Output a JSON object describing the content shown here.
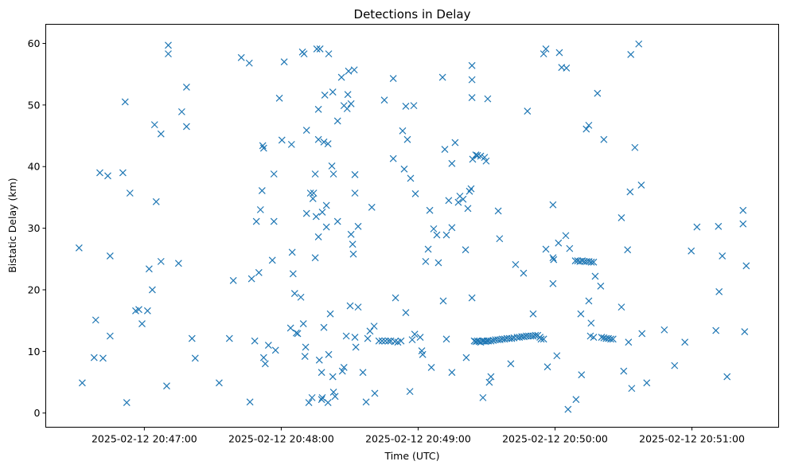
{
  "chart_data": {
    "type": "scatter",
    "title": "Detections in Delay",
    "xlabel": "Time (UTC)",
    "ylabel": "Bistatic Delay (km)",
    "x_units": "seconds relative to 2025-02-12 20:47:00 UTC",
    "xlim": [
      -43.2,
      278
    ],
    "ylim": [
      -2.3,
      63.1
    ],
    "grid": false,
    "marker": "x",
    "color": "#1f77b4",
    "xticks": [
      {
        "value": 0,
        "label": "2025-02-12 20:47:00"
      },
      {
        "value": 60,
        "label": "2025-02-12 20:48:00"
      },
      {
        "value": 120,
        "label": "2025-02-12 20:49:00"
      },
      {
        "value": 180,
        "label": "2025-02-12 20:50:00"
      },
      {
        "value": 240,
        "label": "2025-02-12 20:51:00"
      }
    ],
    "yticks": [
      {
        "value": 0,
        "label": "0"
      },
      {
        "value": 10,
        "label": "10"
      },
      {
        "value": 20,
        "label": "20"
      },
      {
        "value": 30,
        "label": "30"
      },
      {
        "value": 40,
        "label": "40"
      },
      {
        "value": 50,
        "label": "50"
      },
      {
        "value": 60,
        "label": "60"
      }
    ],
    "points": [
      [
        -28.6,
        26.8
      ],
      [
        -27.2,
        4.9
      ],
      [
        -21.3,
        15.1
      ],
      [
        -22.0,
        9.0
      ],
      [
        -19.5,
        39.0
      ],
      [
        -18.1,
        8.9
      ],
      [
        -16.0,
        38.5
      ],
      [
        -15.0,
        25.5
      ],
      [
        -15.0,
        12.5
      ],
      [
        -9.4,
        39.0
      ],
      [
        -8.4,
        50.5
      ],
      [
        -7.7,
        1.7
      ],
      [
        -6.3,
        35.7
      ],
      [
        -3.8,
        16.6
      ],
      [
        -2.4,
        16.8
      ],
      [
        -1.0,
        14.5
      ],
      [
        1.4,
        16.6
      ],
      [
        2.1,
        23.4
      ],
      [
        3.5,
        20.0
      ],
      [
        4.5,
        46.8
      ],
      [
        5.2,
        34.3
      ],
      [
        7.3,
        45.3
      ],
      [
        7.3,
        24.6
      ],
      [
        9.8,
        4.4
      ],
      [
        10.5,
        59.7
      ],
      [
        10.5,
        58.3
      ],
      [
        15.0,
        24.3
      ],
      [
        16.4,
        48.9
      ],
      [
        18.5,
        52.9
      ],
      [
        18.5,
        46.5
      ],
      [
        20.9,
        12.1
      ],
      [
        22.3,
        8.9
      ],
      [
        32.8,
        4.9
      ],
      [
        37.3,
        12.1
      ],
      [
        39.0,
        21.5
      ],
      [
        42.5,
        57.7
      ],
      [
        46.0,
        56.8
      ],
      [
        46.3,
        1.8
      ],
      [
        47.0,
        21.8
      ],
      [
        48.4,
        11.7
      ],
      [
        49.1,
        31.1
      ],
      [
        50.2,
        22.8
      ],
      [
        50.9,
        33.0
      ],
      [
        51.6,
        36.1
      ],
      [
        51.9,
        43.4
      ],
      [
        52.3,
        43.0
      ],
      [
        52.3,
        9.0
      ],
      [
        53.0,
        8.0
      ],
      [
        54.4,
        11.0
      ],
      [
        56.1,
        24.8
      ],
      [
        56.8,
        38.8
      ],
      [
        56.8,
        31.1
      ],
      [
        57.5,
        10.2
      ],
      [
        59.2,
        51.1
      ],
      [
        60.3,
        44.3
      ],
      [
        61.3,
        57.0
      ],
      [
        64.1,
        13.8
      ],
      [
        64.5,
        43.6
      ],
      [
        64.8,
        26.1
      ],
      [
        65.2,
        22.6
      ],
      [
        65.9,
        19.4
      ],
      [
        66.6,
        13.0
      ],
      [
        67.2,
        12.9
      ],
      [
        68.6,
        18.8
      ],
      [
        69.3,
        58.6
      ],
      [
        70.0,
        58.3
      ],
      [
        69.7,
        14.5
      ],
      [
        70.4,
        9.2
      ],
      [
        70.7,
        10.7
      ],
      [
        71.1,
        45.9
      ],
      [
        71.1,
        32.4
      ],
      [
        72.1,
        1.7
      ],
      [
        72.8,
        35.7
      ],
      [
        73.5,
        2.5
      ],
      [
        73.9,
        34.8
      ],
      [
        74.2,
        35.7
      ],
      [
        74.9,
        38.8
      ],
      [
        74.9,
        25.2
      ],
      [
        75.3,
        31.9
      ],
      [
        75.6,
        59.1
      ],
      [
        76.3,
        49.3
      ],
      [
        76.3,
        44.4
      ],
      [
        76.3,
        28.6
      ],
      [
        77.0,
        59.1
      ],
      [
        76.7,
        8.6
      ],
      [
        77.7,
        2.2
      ],
      [
        77.7,
        6.6
      ],
      [
        78.0,
        32.6
      ],
      [
        78.0,
        2.5
      ],
      [
        78.7,
        44.0
      ],
      [
        78.7,
        13.9
      ],
      [
        79.1,
        51.6
      ],
      [
        79.8,
        33.7
      ],
      [
        79.8,
        30.2
      ],
      [
        80.5,
        43.7
      ],
      [
        80.5,
        1.7
      ],
      [
        80.8,
        58.3
      ],
      [
        80.8,
        9.5
      ],
      [
        81.5,
        16.1
      ],
      [
        82.2,
        40.1
      ],
      [
        82.6,
        52.1
      ],
      [
        82.9,
        38.8
      ],
      [
        82.6,
        5.9
      ],
      [
        82.9,
        3.4
      ],
      [
        83.6,
        2.7
      ],
      [
        84.7,
        47.4
      ],
      [
        84.7,
        31.1
      ],
      [
        86.4,
        54.5
      ],
      [
        86.8,
        6.8
      ],
      [
        87.5,
        49.9
      ],
      [
        87.5,
        7.4
      ],
      [
        88.5,
        12.5
      ],
      [
        88.9,
        49.4
      ],
      [
        89.2,
        51.7
      ],
      [
        89.5,
        55.5
      ],
      [
        90.2,
        17.4
      ],
      [
        90.6,
        50.2
      ],
      [
        90.6,
        29.0
      ],
      [
        91.3,
        27.4
      ],
      [
        91.6,
        25.8
      ],
      [
        92.0,
        55.7
      ],
      [
        92.3,
        38.7
      ],
      [
        92.3,
        35.7
      ],
      [
        92.3,
        12.3
      ],
      [
        92.7,
        10.7
      ],
      [
        93.7,
        17.2
      ],
      [
        93.7,
        30.3
      ],
      [
        95.8,
        6.6
      ],
      [
        97.2,
        1.8
      ],
      [
        97.9,
        12.1
      ],
      [
        98.9,
        13.3
      ],
      [
        99.7,
        33.4
      ],
      [
        100.7,
        14.1
      ],
      [
        101.0,
        3.2
      ],
      [
        102.8,
        11.7
      ],
      [
        104.2,
        11.7
      ],
      [
        105.2,
        50.8
      ],
      [
        105.6,
        11.7
      ],
      [
        107.0,
        11.7
      ],
      [
        108.0,
        11.7
      ],
      [
        109.1,
        54.3
      ],
      [
        109.1,
        41.3
      ],
      [
        109.8,
        11.6
      ],
      [
        110.1,
        18.7
      ],
      [
        111.1,
        11.5
      ],
      [
        112.5,
        11.7
      ],
      [
        113.2,
        45.8
      ],
      [
        113.9,
        39.6
      ],
      [
        114.6,
        16.3
      ],
      [
        114.6,
        49.8
      ],
      [
        115.3,
        44.4
      ],
      [
        116.4,
        3.5
      ],
      [
        116.7,
        38.1
      ],
      [
        117.4,
        11.9
      ],
      [
        118.1,
        49.9
      ],
      [
        118.5,
        12.8
      ],
      [
        118.8,
        35.6
      ],
      [
        120.9,
        12.3
      ],
      [
        121.6,
        10.1
      ],
      [
        122.0,
        9.5
      ],
      [
        123.3,
        24.6
      ],
      [
        124.4,
        26.6
      ],
      [
        125.1,
        32.9
      ],
      [
        125.8,
        7.4
      ],
      [
        126.8,
        29.9
      ],
      [
        128.2,
        28.9
      ],
      [
        128.9,
        24.4
      ],
      [
        130.7,
        54.5
      ],
      [
        131.0,
        18.2
      ],
      [
        131.7,
        42.8
      ],
      [
        132.4,
        12.0
      ],
      [
        132.4,
        28.9
      ],
      [
        133.4,
        34.5
      ],
      [
        134.8,
        6.6
      ],
      [
        134.8,
        30.1
      ],
      [
        134.8,
        40.5
      ],
      [
        136.2,
        43.9
      ],
      [
        137.6,
        34.2
      ],
      [
        138.3,
        35.2
      ],
      [
        139.7,
        34.7
      ],
      [
        140.8,
        26.5
      ],
      [
        141.1,
        9.0
      ],
      [
        141.8,
        33.2
      ],
      [
        142.5,
        36.0
      ],
      [
        143.2,
        36.4
      ],
      [
        143.6,
        56.4
      ],
      [
        143.6,
        54.1
      ],
      [
        143.6,
        51.2
      ],
      [
        143.6,
        18.7
      ],
      [
        143.9,
        41.2
      ],
      [
        145.3,
        41.9
      ],
      [
        146.0,
        41.8
      ],
      [
        147.4,
        41.7
      ],
      [
        148.4,
        2.5
      ],
      [
        149.1,
        41.5
      ],
      [
        149.8,
        40.9
      ],
      [
        150.5,
        51.0
      ],
      [
        151.2,
        5.0
      ],
      [
        151.9,
        5.9
      ],
      [
        155.1,
        32.8
      ],
      [
        155.7,
        28.3
      ],
      [
        144.6,
        11.7
      ],
      [
        145.3,
        11.6
      ],
      [
        146.0,
        11.7
      ],
      [
        146.7,
        11.6
      ],
      [
        147.4,
        11.5
      ],
      [
        148.1,
        11.7
      ],
      [
        148.8,
        11.7
      ],
      [
        149.5,
        11.6
      ],
      [
        150.2,
        11.7
      ],
      [
        150.9,
        11.7
      ],
      [
        151.9,
        11.7
      ],
      [
        152.9,
        11.8
      ],
      [
        153.9,
        11.9
      ],
      [
        154.9,
        11.9
      ],
      [
        155.9,
        11.9
      ],
      [
        156.9,
        12.0
      ],
      [
        157.9,
        12.0
      ],
      [
        158.9,
        12.1
      ],
      [
        160.0,
        12.1
      ],
      [
        161.0,
        12.1
      ],
      [
        162.0,
        12.2
      ],
      [
        163.4,
        12.3
      ],
      [
        164.4,
        12.3
      ],
      [
        165.4,
        12.4
      ],
      [
        166.4,
        12.4
      ],
      [
        167.4,
        12.5
      ],
      [
        168.4,
        12.5
      ],
      [
        169.4,
        12.5
      ],
      [
        170.4,
        12.5
      ],
      [
        171.4,
        12.6
      ],
      [
        172.4,
        12.6
      ],
      [
        173.4,
        12.3
      ],
      [
        173.9,
        12.0
      ],
      [
        175.0,
        12.0
      ],
      [
        160.6,
        8.0
      ],
      [
        162.7,
        24.1
      ],
      [
        166.2,
        22.7
      ],
      [
        167.9,
        49.0
      ],
      [
        170.4,
        16.1
      ],
      [
        175.0,
        58.3
      ],
      [
        176.0,
        59.1
      ],
      [
        176.0,
        26.6
      ],
      [
        176.7,
        7.5
      ],
      [
        179.1,
        33.8
      ],
      [
        179.1,
        25.2
      ],
      [
        179.4,
        24.9
      ],
      [
        179.1,
        21.0
      ],
      [
        180.8,
        9.3
      ],
      [
        181.9,
        58.5
      ],
      [
        181.5,
        27.6
      ],
      [
        182.9,
        56.1
      ],
      [
        184.7,
        28.8
      ],
      [
        185.0,
        56.0
      ],
      [
        185.7,
        0.6
      ],
      [
        186.4,
        26.7
      ],
      [
        188.9,
        24.7
      ],
      [
        189.9,
        24.7
      ],
      [
        190.9,
        24.6
      ],
      [
        191.9,
        24.7
      ],
      [
        192.9,
        24.6
      ],
      [
        193.9,
        24.6
      ],
      [
        194.9,
        24.6
      ],
      [
        195.9,
        24.5
      ],
      [
        196.9,
        24.5
      ],
      [
        189.2,
        2.2
      ],
      [
        191.3,
        16.1
      ],
      [
        191.6,
        6.2
      ],
      [
        193.7,
        46.1
      ],
      [
        194.8,
        46.7
      ],
      [
        194.8,
        18.2
      ],
      [
        195.5,
        12.5
      ],
      [
        195.8,
        14.6
      ],
      [
        196.9,
        12.3
      ],
      [
        197.6,
        22.2
      ],
      [
        198.6,
        51.9
      ],
      [
        200.0,
        20.6
      ],
      [
        200.4,
        12.3
      ],
      [
        201.4,
        12.2
      ],
      [
        202.4,
        12.1
      ],
      [
        203.4,
        12.1
      ],
      [
        204.4,
        12.0
      ],
      [
        205.4,
        12.0
      ],
      [
        201.4,
        44.4
      ],
      [
        209.1,
        31.7
      ],
      [
        209.1,
        17.2
      ],
      [
        210.1,
        6.8
      ],
      [
        211.8,
        26.5
      ],
      [
        212.2,
        11.5
      ],
      [
        212.9,
        35.9
      ],
      [
        213.2,
        58.2
      ],
      [
        213.6,
        4.0
      ],
      [
        215.0,
        43.1
      ],
      [
        216.7,
        59.9
      ],
      [
        217.8,
        37.0
      ],
      [
        218.1,
        12.9
      ],
      [
        220.2,
        4.9
      ],
      [
        227.9,
        13.5
      ],
      [
        232.4,
        7.7
      ],
      [
        236.9,
        11.5
      ],
      [
        239.7,
        26.3
      ],
      [
        242.2,
        30.2
      ],
      [
        250.5,
        13.4
      ],
      [
        251.6,
        30.3
      ],
      [
        251.9,
        19.7
      ],
      [
        253.3,
        25.5
      ],
      [
        255.4,
        5.9
      ],
      [
        262.4,
        32.9
      ],
      [
        262.4,
        30.7
      ],
      [
        263.1,
        13.2
      ],
      [
        263.8,
        23.9
      ]
    ]
  }
}
